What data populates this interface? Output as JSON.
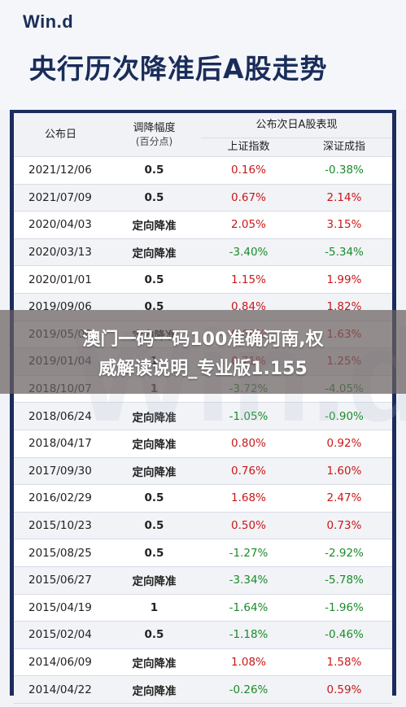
{
  "header": {
    "logo": "Win.d",
    "title": "央行历次降准后A股走势"
  },
  "table": {
    "col_date": "公布日",
    "col_rate_line1": "调降幅度",
    "col_rate_line2": "(百分点)",
    "col_group": "公布次日A股表现",
    "col_sh": "上证指数",
    "col_sz": "深证成指",
    "rows": [
      {
        "date": "2021/12/06",
        "rate": "0.5",
        "sh": "0.16%",
        "sz": "-0.38%"
      },
      {
        "date": "2021/07/09",
        "rate": "0.5",
        "sh": "0.67%",
        "sz": "2.14%"
      },
      {
        "date": "2020/04/03",
        "rate": "定向降准",
        "sh": "2.05%",
        "sz": "3.15%"
      },
      {
        "date": "2020/03/13",
        "rate": "定向降准",
        "sh": "-3.40%",
        "sz": "-5.34%"
      },
      {
        "date": "2020/01/01",
        "rate": "0.5",
        "sh": "1.15%",
        "sz": "1.99%"
      },
      {
        "date": "2019/09/06",
        "rate": "0.5",
        "sh": "0.84%",
        "sz": "1.82%"
      },
      {
        "date": "2019/05/06",
        "rate": "定向降准",
        "sh": "0.69%",
        "sz": "1.63%"
      },
      {
        "date": "2019/01/04",
        "rate": "1",
        "sh": "0.71%",
        "sz": "1.25%"
      },
      {
        "date": "2018/10/07",
        "rate": "1",
        "sh": "-3.72%",
        "sz": "-4.05%"
      },
      {
        "date": "2018/06/24",
        "rate": "定向降准",
        "sh": "-1.05%",
        "sz": "-0.90%"
      },
      {
        "date": "2018/04/17",
        "rate": "定向降准",
        "sh": "0.80%",
        "sz": "0.92%"
      },
      {
        "date": "2017/09/30",
        "rate": "定向降准",
        "sh": "0.76%",
        "sz": "1.60%"
      },
      {
        "date": "2016/02/29",
        "rate": "0.5",
        "sh": "1.68%",
        "sz": "2.47%"
      },
      {
        "date": "2015/10/23",
        "rate": "0.5",
        "sh": "0.50%",
        "sz": "0.73%"
      },
      {
        "date": "2015/08/25",
        "rate": "0.5",
        "sh": "-1.27%",
        "sz": "-2.92%"
      },
      {
        "date": "2015/06/27",
        "rate": "定向降准",
        "sh": "-3.34%",
        "sz": "-5.78%"
      },
      {
        "date": "2015/04/19",
        "rate": "1",
        "sh": "-1.64%",
        "sz": "-1.96%"
      },
      {
        "date": "2015/02/04",
        "rate": "0.5",
        "sh": "-1.18%",
        "sz": "-0.46%"
      },
      {
        "date": "2014/06/09",
        "rate": "定向降准",
        "sh": "1.08%",
        "sz": "1.58%"
      },
      {
        "date": "2014/04/22",
        "rate": "定向降准",
        "sh": "-0.26%",
        "sz": "0.59%"
      }
    ]
  },
  "overlay": {
    "line1": "澳门一码一码100准确河南,权",
    "line2": "威解读说明_专业版1.155"
  },
  "colors": {
    "positive": "#c81818",
    "negative": "#1c8a2c",
    "title": "#1a2d5a",
    "frame": "#1c2c5e"
  }
}
